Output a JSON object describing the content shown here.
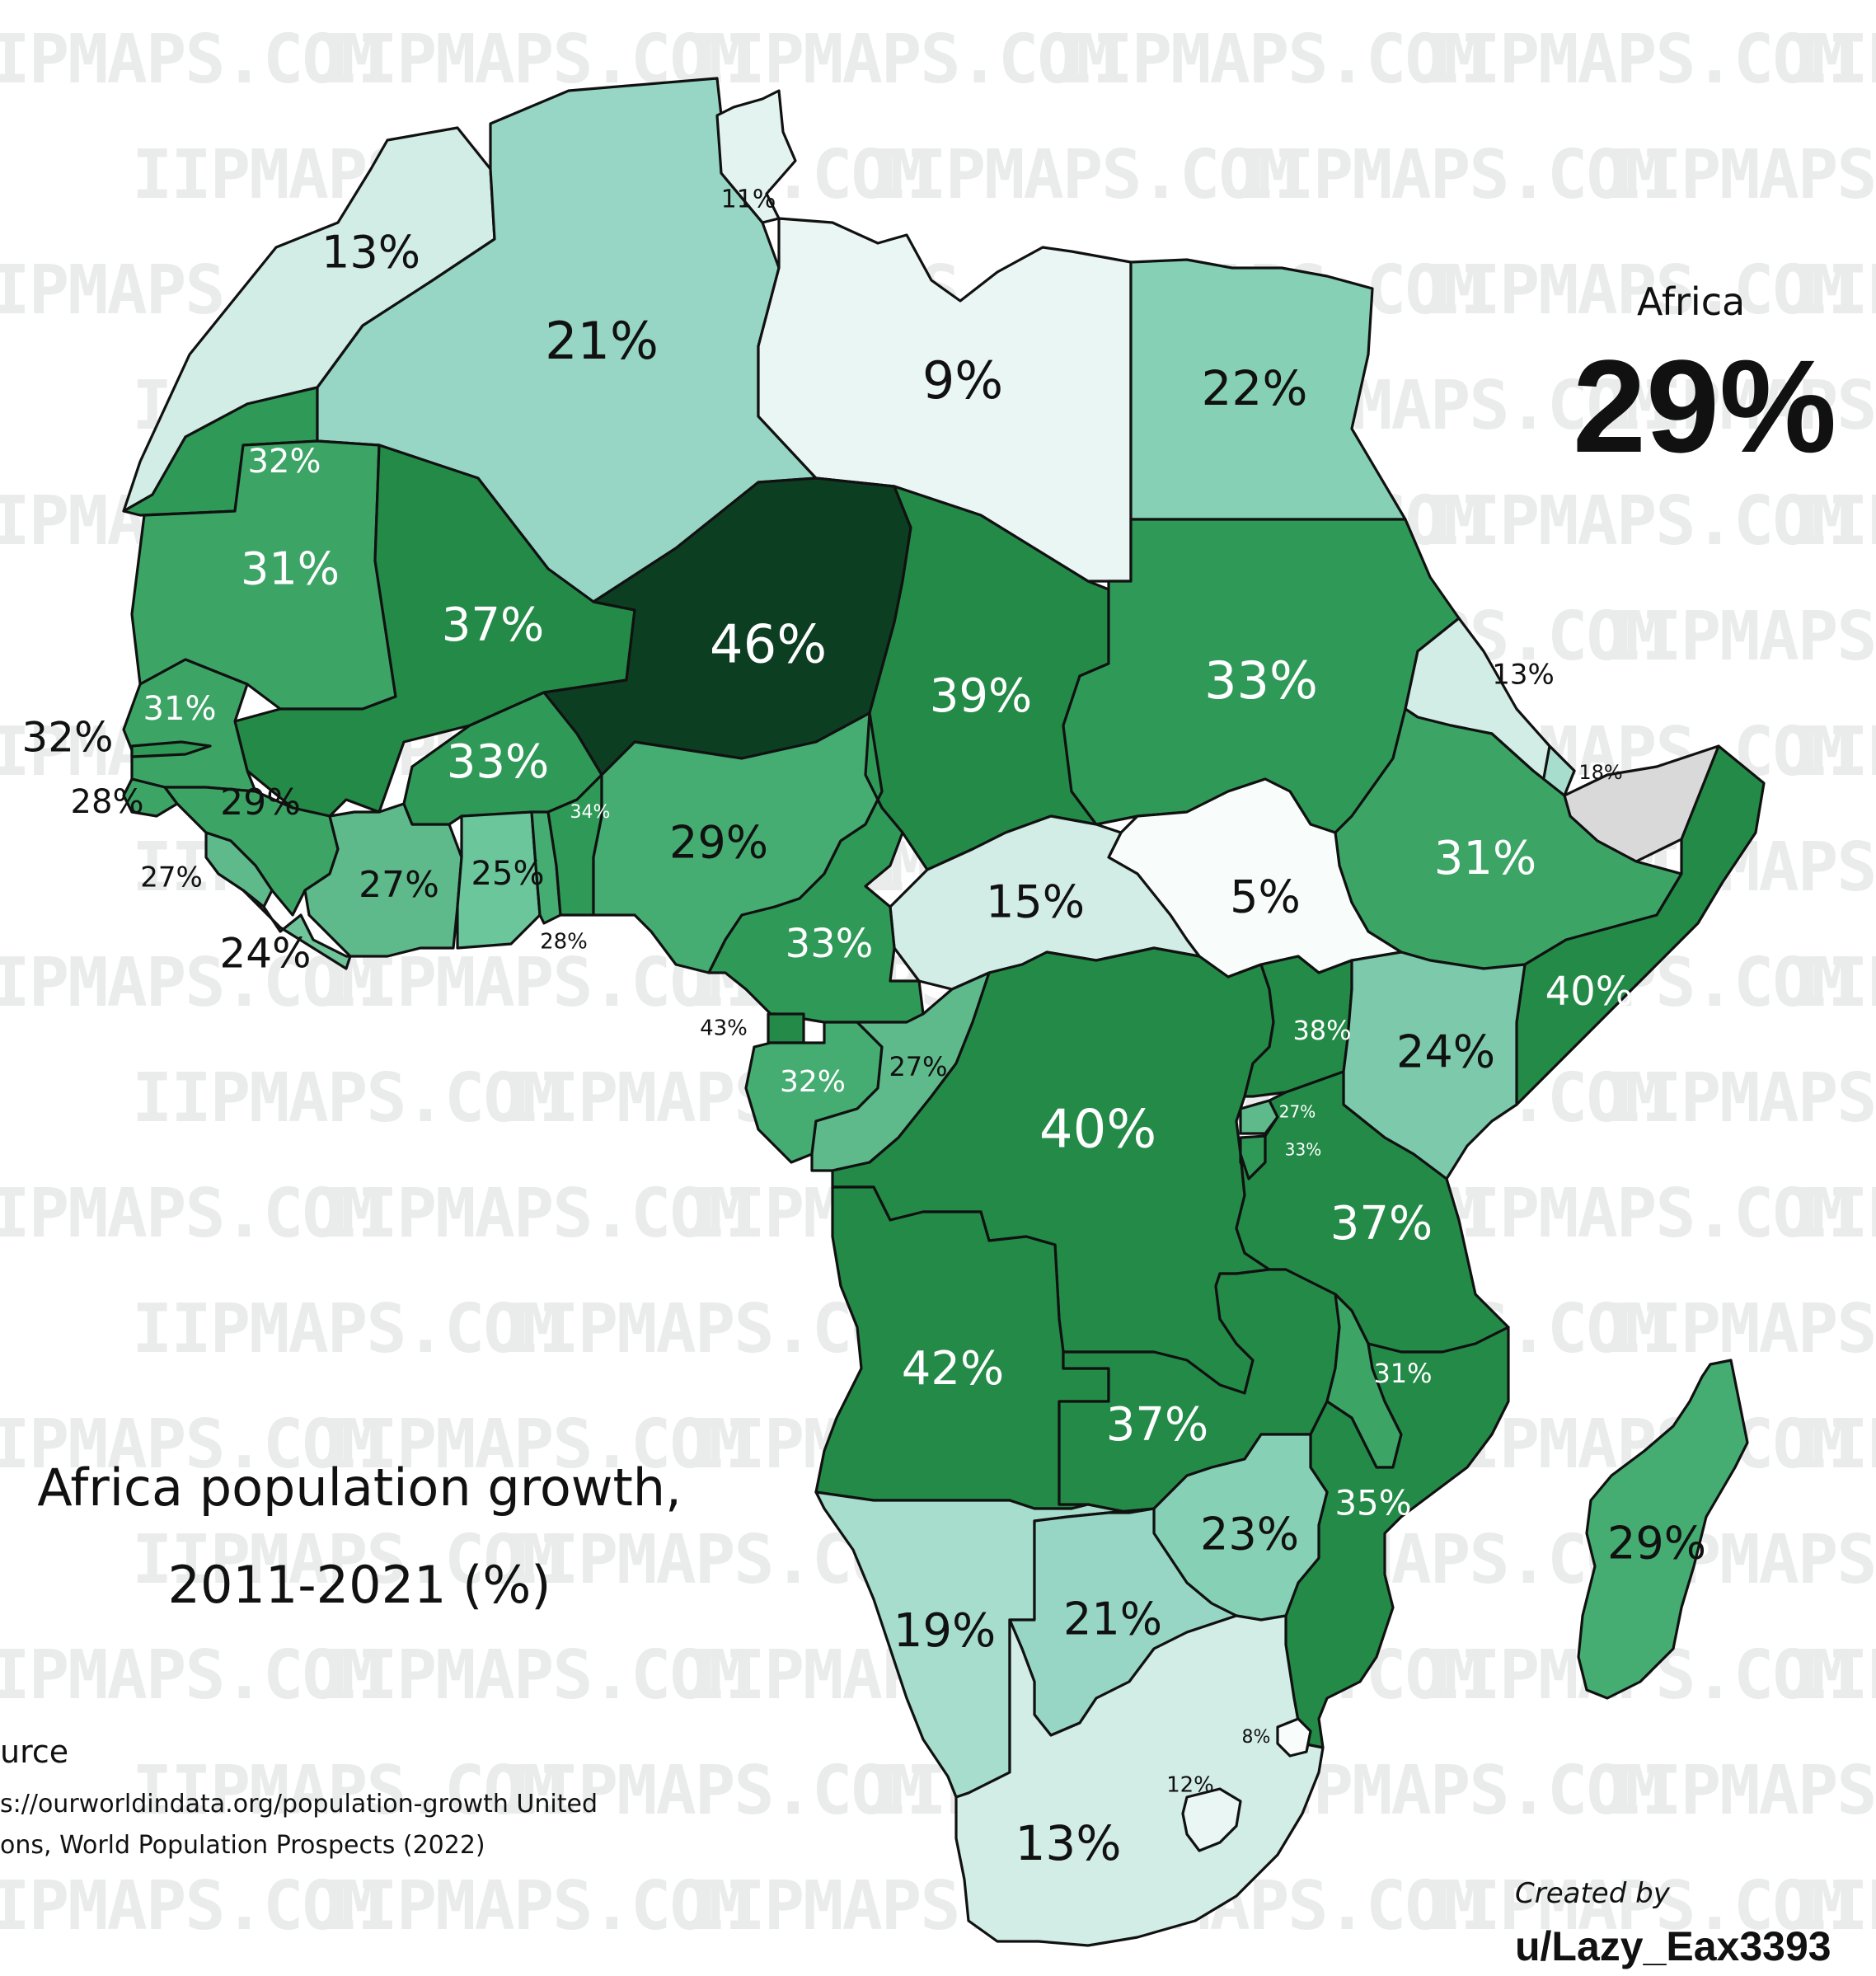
{
  "map": {
    "title_line1": "Africa population growth,",
    "title_line2": "2011-2021 (%)",
    "summary_label": "Africa",
    "summary_value": "29%",
    "source_label": "urce",
    "source_line1": "s://ourworldindata.org/population-growth United",
    "source_line2": "ons, World Population Prospects (2022)",
    "credit_label": "Created by",
    "credit_user": "u/Lazy_Eax3393",
    "watermark": "IIPMAPS.COM",
    "colors": {
      "darkest": "#0c3e22",
      "dark": "#238b47",
      "mid_dark": "#2f9a58",
      "mid": "#45ad72",
      "mid_light": "#5fba8b",
      "light": "#86d0b6",
      "lighter": "#a6ddcc",
      "pale": "#d2ece6",
      "palest": "#eaf6f4",
      "white": "#f8fcfb",
      "no_data": "#d9d9d9",
      "watermark": "#e9ecea"
    },
    "countries": [
      {
        "id": "morocco",
        "label": "13%"
      },
      {
        "id": "algeria",
        "label": "21%"
      },
      {
        "id": "tunisia",
        "label": "11%"
      },
      {
        "id": "libya",
        "label": "9%"
      },
      {
        "id": "egypt",
        "label": "22%"
      },
      {
        "id": "western-sahara",
        "label": "32%"
      },
      {
        "id": "mauritania",
        "label": "31%"
      },
      {
        "id": "mali",
        "label": "37%"
      },
      {
        "id": "niger",
        "label": "46%"
      },
      {
        "id": "chad",
        "label": "39%"
      },
      {
        "id": "sudan",
        "label": "33%"
      },
      {
        "id": "eritrea",
        "label": "13%"
      },
      {
        "id": "djibouti",
        "label": "18%"
      },
      {
        "id": "ethiopia",
        "label": "31%"
      },
      {
        "id": "senegal",
        "label": "31%"
      },
      {
        "id": "gambia",
        "label": "32%"
      },
      {
        "id": "guinea-bissau",
        "label": "28%"
      },
      {
        "id": "guinea",
        "label": "29%"
      },
      {
        "id": "sierra-leone",
        "label": "27%"
      },
      {
        "id": "liberia",
        "label": "24%"
      },
      {
        "id": "burkina-faso",
        "label": "33%"
      },
      {
        "id": "ivory-coast",
        "label": "27%"
      },
      {
        "id": "ghana",
        "label": "25%"
      },
      {
        "id": "togo",
        "label": "28%"
      },
      {
        "id": "benin",
        "label": "34%"
      },
      {
        "id": "nigeria",
        "label": "29%"
      },
      {
        "id": "cameroon",
        "label": "33%"
      },
      {
        "id": "car",
        "label": "15%"
      },
      {
        "id": "south-sudan",
        "label": "5%"
      },
      {
        "id": "somalia",
        "label": "40%"
      },
      {
        "id": "kenya",
        "label": "24%"
      },
      {
        "id": "uganda",
        "label": "38%"
      },
      {
        "id": "rwanda",
        "label": "27%"
      },
      {
        "id": "burundi",
        "label": "33%"
      },
      {
        "id": "equatorial-guinea",
        "label": "43%"
      },
      {
        "id": "gabon",
        "label": "32%"
      },
      {
        "id": "congo",
        "label": "27%"
      },
      {
        "id": "drc",
        "label": "40%"
      },
      {
        "id": "tanzania",
        "label": "37%"
      },
      {
        "id": "angola",
        "label": "42%"
      },
      {
        "id": "zambia",
        "label": "37%"
      },
      {
        "id": "malawi",
        "label": "31%"
      },
      {
        "id": "mozambique",
        "label": "35%"
      },
      {
        "id": "zimbabwe",
        "label": "23%"
      },
      {
        "id": "madagascar",
        "label": "29%"
      },
      {
        "id": "namibia",
        "label": "19%"
      },
      {
        "id": "botswana",
        "label": "21%"
      },
      {
        "id": "eswatini",
        "label": "8%"
      },
      {
        "id": "lesotho",
        "label": "12%"
      },
      {
        "id": "south-africa",
        "label": "13%"
      }
    ]
  }
}
